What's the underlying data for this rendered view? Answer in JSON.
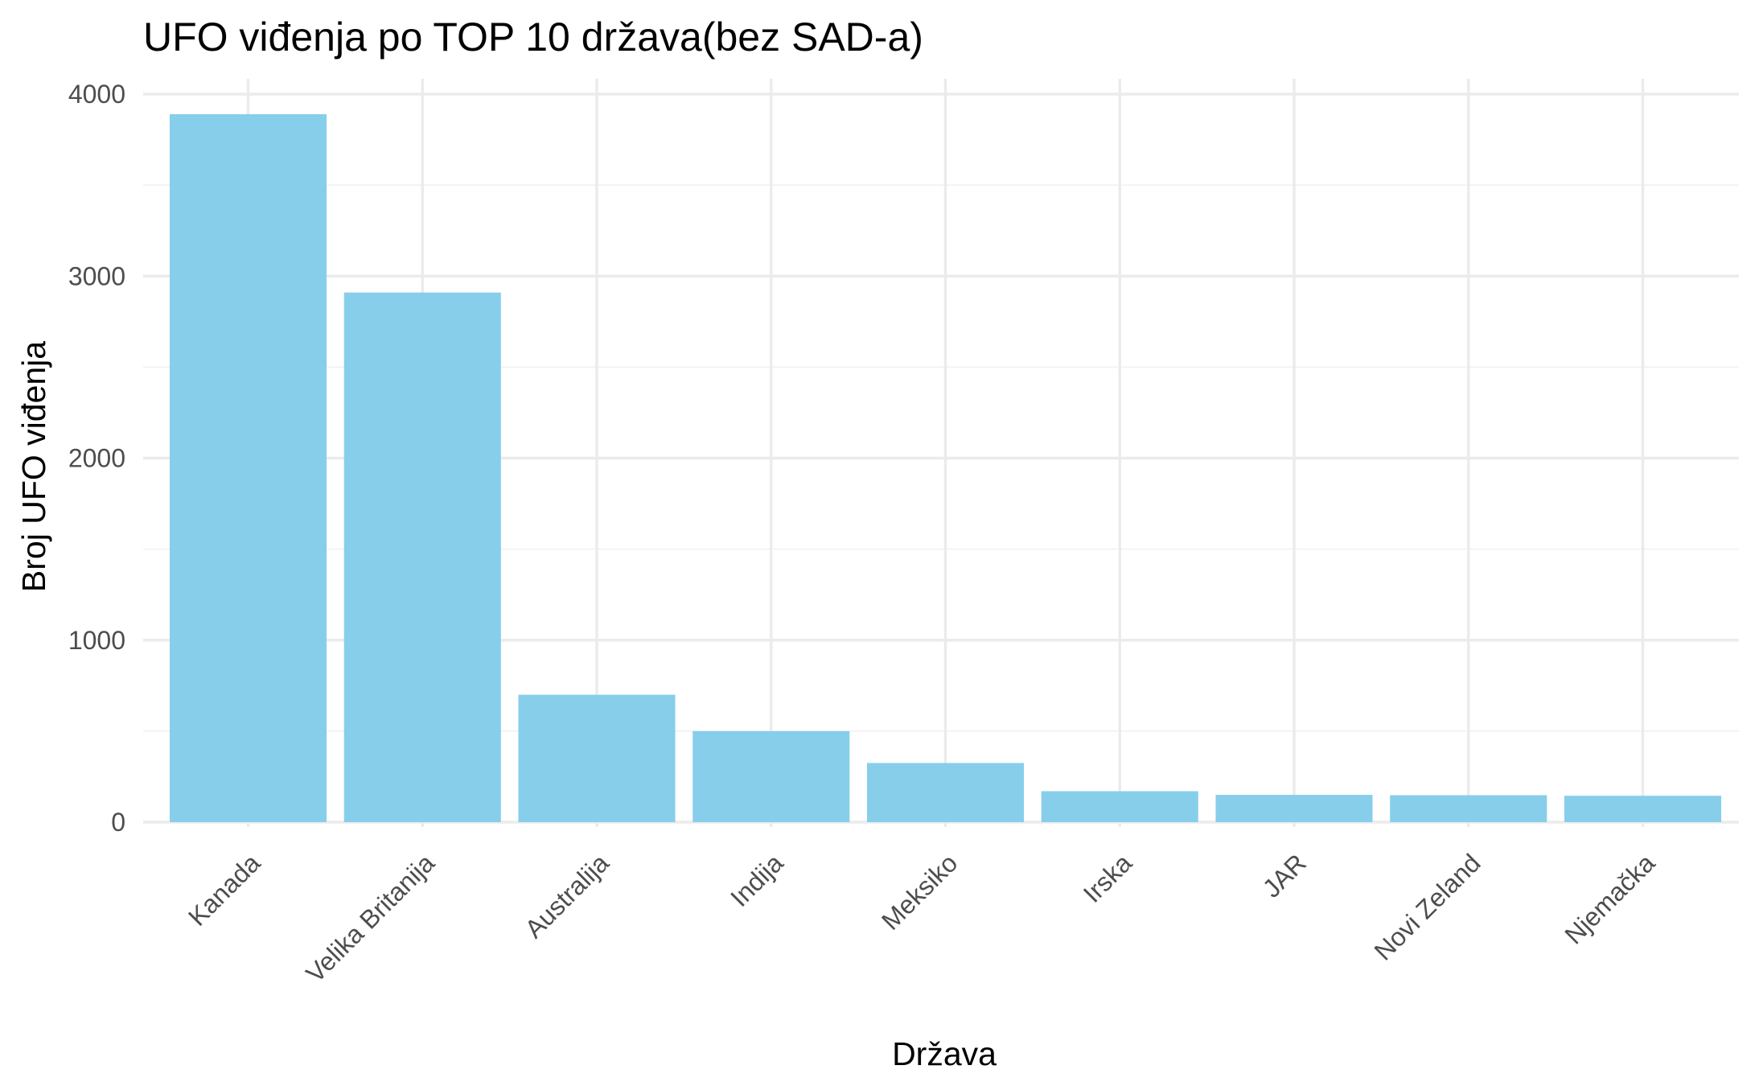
{
  "chart_data": {
    "type": "bar",
    "title": "UFO viđenja po TOP 10 država(bez SAD-a)",
    "xlabel": "Država",
    "ylabel": "Broj UFO viđenja",
    "categories": [
      "Kanada",
      "Velika Britanija",
      "Australija",
      "Indija",
      "Meksiko",
      "Irska",
      "JAR",
      "Novi Zeland",
      "Njemačka"
    ],
    "values": [
      3890,
      2910,
      700,
      500,
      325,
      170,
      150,
      148,
      145
    ],
    "ylim": [
      0,
      4000
    ],
    "yticks": [
      0,
      1000,
      2000,
      3000,
      4000
    ],
    "grid": true,
    "bar_color": "#87ceeb"
  }
}
